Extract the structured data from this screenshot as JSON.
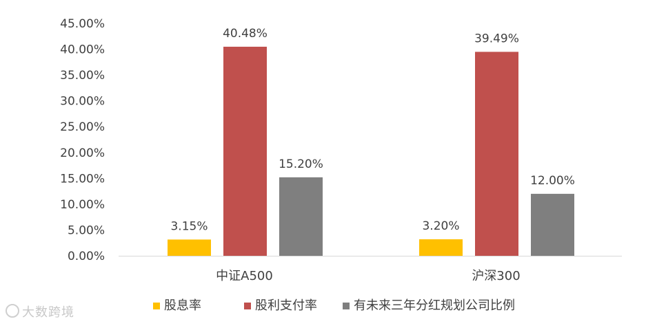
{
  "chart_data": {
    "type": "bar",
    "categories": [
      "中证A500",
      "沪深300"
    ],
    "series": [
      {
        "name": "股息率",
        "values": [
          3.15,
          3.2
        ],
        "color": "#FFC000"
      },
      {
        "name": "股利支付率",
        "values": [
          40.48,
          39.49
        ],
        "color": "#C0504D"
      },
      {
        "name": "有未来三年分红规划公司比例",
        "values": [
          15.2,
          12.0
        ],
        "color": "#7F7F7F"
      }
    ],
    "ylim": [
      0,
      45
    ],
    "ytick_step": 5,
    "y_format": "percent_2dp",
    "grid": false,
    "legend_position": "bottom",
    "data_labels": true
  },
  "watermark": {
    "text": "大数跨境",
    "icon": "logo-icon"
  }
}
